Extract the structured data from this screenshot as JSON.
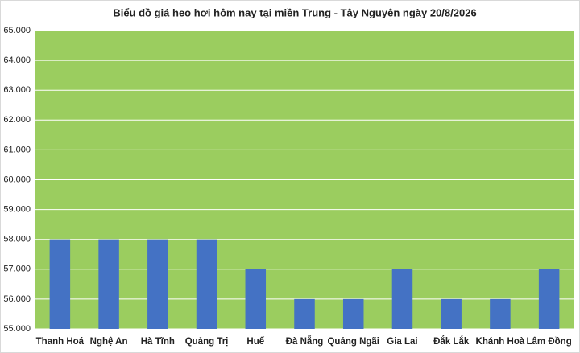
{
  "chart_data": {
    "type": "bar",
    "title": "Biểu đồ giá heo hơi hôm nay tại miền Trung - Tây Nguyên ngày 20/8/2026",
    "categories": [
      "Thanh Hoá",
      "Nghệ An",
      "Hà Tĩnh",
      "Quảng Trị",
      "Huế",
      "Đà Nẵng",
      "Quảng Ngãi",
      "Gia Lai",
      "Đắk Lắk",
      "Khánh Hoà",
      "Lâm Đồng"
    ],
    "values": [
      58000,
      58000,
      58000,
      58000,
      57000,
      56000,
      56000,
      57000,
      56000,
      56000,
      57000
    ],
    "color": "#4472c4",
    "plot_background": "#9bcd5f",
    "ylim": [
      55000,
      65000
    ],
    "yticks": [
      {
        "value": 55000,
        "label": "55.000"
      },
      {
        "value": 56000,
        "label": "56.000"
      },
      {
        "value": 57000,
        "label": "57.000"
      },
      {
        "value": 58000,
        "label": "58.000"
      },
      {
        "value": 59000,
        "label": "59.000"
      },
      {
        "value": 60000,
        "label": "60.000"
      },
      {
        "value": 61000,
        "label": "61.000"
      },
      {
        "value": 62000,
        "label": "62.000"
      },
      {
        "value": 63000,
        "label": "63.000"
      },
      {
        "value": 64000,
        "label": "64.000"
      },
      {
        "value": 65000,
        "label": "65.000"
      }
    ],
    "grid": true
  }
}
